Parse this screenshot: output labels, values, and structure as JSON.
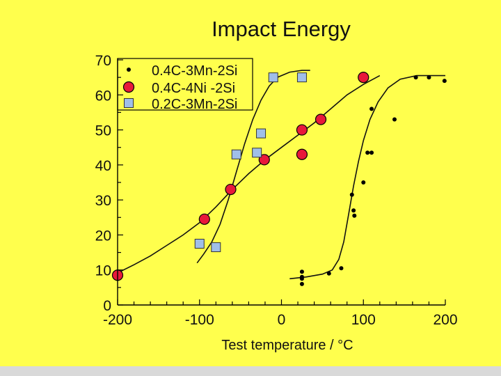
{
  "chart_data": {
    "type": "scatter",
    "title": "Impact Energy",
    "xlabel": "Test temperature / °C",
    "ylabel": "",
    "xlim": [
      -200,
      200
    ],
    "ylim": [
      0,
      70
    ],
    "x_ticks": [
      "-200",
      "-100",
      "0",
      "100",
      "200"
    ],
    "y_ticks": [
      "0",
      "10",
      "20",
      "30",
      "40",
      "50",
      "60",
      "70"
    ],
    "grid": false,
    "legend_position": "top-left",
    "series": [
      {
        "name": "0.4C-3Mn-2Si",
        "marker": "small-dot",
        "color": "#000000",
        "points": [
          [
            25,
            9.5
          ],
          [
            25,
            8
          ],
          [
            25,
            7.5
          ],
          [
            25,
            6
          ],
          [
            58,
            9
          ],
          [
            73,
            10.5
          ],
          [
            86,
            31.5
          ],
          [
            88,
            27
          ],
          [
            89,
            25.5
          ],
          [
            100,
            35
          ],
          [
            105,
            43.5
          ],
          [
            110,
            43.5
          ],
          [
            110,
            56
          ],
          [
            138,
            53
          ],
          [
            164,
            65
          ],
          [
            180,
            65
          ],
          [
            199,
            64
          ]
        ],
        "curve": [
          [
            10,
            7.5
          ],
          [
            30,
            8
          ],
          [
            50,
            8.8
          ],
          [
            62,
            10
          ],
          [
            70,
            13
          ],
          [
            76,
            18
          ],
          [
            82,
            26
          ],
          [
            88,
            34
          ],
          [
            94,
            41
          ],
          [
            100,
            47
          ],
          [
            108,
            53
          ],
          [
            118,
            58
          ],
          [
            130,
            62
          ],
          [
            145,
            64.5
          ],
          [
            165,
            65.5
          ],
          [
            185,
            65.5
          ],
          [
            200,
            65.5
          ]
        ]
      },
      {
        "name": "0.4C-4Ni -2Si",
        "marker": "red-circle",
        "color": "#e8193a",
        "points": [
          [
            -200,
            8.5
          ],
          [
            -94,
            24.5
          ],
          [
            -62,
            33
          ],
          [
            -21,
            41.5
          ],
          [
            25,
            50
          ],
          [
            25,
            43
          ],
          [
            48,
            53
          ],
          [
            100,
            65
          ]
        ],
        "curve": [
          [
            -197,
            9.5
          ],
          [
            -180,
            11.5
          ],
          [
            -160,
            14
          ],
          [
            -140,
            17
          ],
          [
            -120,
            20
          ],
          [
            -100,
            23.5
          ],
          [
            -80,
            28
          ],
          [
            -60,
            33
          ],
          [
            -40,
            37.5
          ],
          [
            -20,
            41.5
          ],
          [
            0,
            45
          ],
          [
            20,
            48.5
          ],
          [
            40,
            52
          ],
          [
            60,
            56
          ],
          [
            80,
            60
          ],
          [
            100,
            63
          ],
          [
            120,
            65.5
          ]
        ]
      },
      {
        "name": "0.2C-3Mn-2Si",
        "marker": "blue-square",
        "color": "#a0bfe8",
        "points": [
          [
            -100,
            17.5
          ],
          [
            -80,
            16.5
          ],
          [
            -55,
            43
          ],
          [
            -30,
            43.5
          ],
          [
            -25,
            49
          ],
          [
            -10,
            65
          ],
          [
            25,
            65
          ]
        ],
        "curve": [
          [
            -103,
            12
          ],
          [
            -95,
            14.5
          ],
          [
            -85,
            18
          ],
          [
            -75,
            23
          ],
          [
            -65,
            30
          ],
          [
            -55,
            38
          ],
          [
            -45,
            46
          ],
          [
            -35,
            53
          ],
          [
            -25,
            58.5
          ],
          [
            -15,
            62.5
          ],
          [
            -5,
            65
          ],
          [
            10,
            66.5
          ],
          [
            25,
            67
          ],
          [
            35,
            67
          ]
        ]
      }
    ]
  }
}
